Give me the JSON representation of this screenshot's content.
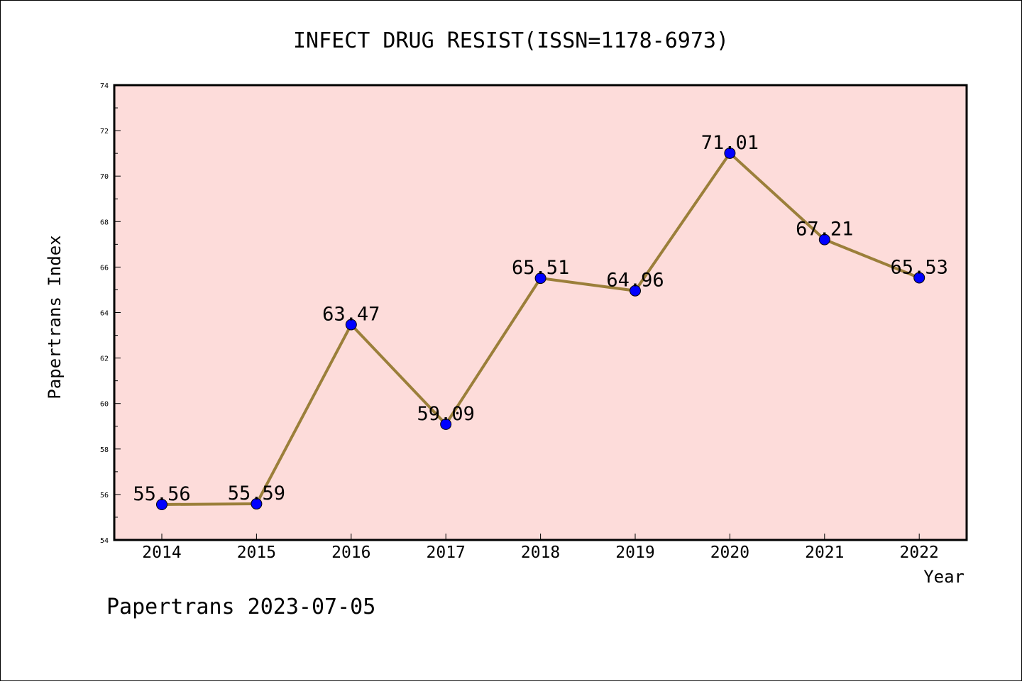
{
  "chart_data": {
    "type": "line",
    "title": "INFECT DRUG RESIST(ISSN=1178-6973)",
    "xlabel": "Year",
    "ylabel": "Papertrans Index",
    "categories": [
      "2014",
      "2015",
      "2016",
      "2017",
      "2018",
      "2019",
      "2020",
      "2021",
      "2022"
    ],
    "values": [
      55.56,
      55.59,
      63.47,
      59.09,
      65.51,
      64.96,
      71.01,
      67.21,
      65.53
    ],
    "data_labels": [
      "55.56",
      "55.59",
      "63.47",
      "59.09",
      "65.51",
      "64.96",
      "71.01",
      "67.21",
      "65.53"
    ],
    "ylim": [
      54,
      74
    ],
    "yticks": [
      "54",
      "56",
      "58",
      "60",
      "62",
      "64",
      "66",
      "68",
      "70",
      "72",
      "74"
    ],
    "grid": false,
    "legend": "none",
    "colors": {
      "plot_background": "#fddcda",
      "line": "#9b7f3a",
      "marker": "#0000ff"
    }
  },
  "footer": "Papertrans 2023-07-05"
}
